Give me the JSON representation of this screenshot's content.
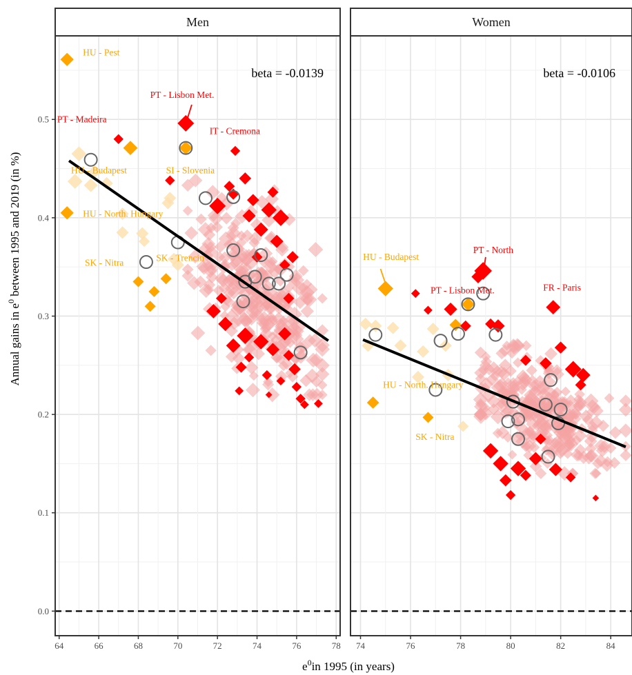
{
  "chart_data": {
    "type": "scatter",
    "ylabel_parts": [
      "Annual gains in e",
      "0",
      " between 1995 and 2019 (in %)"
    ],
    "xlabel_parts": [
      "e",
      "0",
      "in 1995 (in years)"
    ],
    "ylim": [
      -0.025,
      0.585
    ],
    "yticks": [
      0.0,
      0.1,
      0.2,
      0.3,
      0.4,
      0.5
    ],
    "colors": {
      "red": "#ff0000",
      "orange": "#ffa500",
      "light_orange": "#fde0b0",
      "pink": "#f4a3a3",
      "circle": "#666666",
      "fit": "#000000"
    },
    "reference_line": {
      "y": 0.0,
      "style": "dashed"
    },
    "panels": [
      {
        "key": "men",
        "title": "Men",
        "beta_label": "beta = -0.0139",
        "xlim": [
          63.8,
          78.2
        ],
        "xticks": [
          64,
          66,
          68,
          70,
          72,
          74,
          76,
          78
        ],
        "fit": {
          "x": [
            64.5,
            77.6
          ],
          "y": [
            0.458,
            0.275
          ]
        },
        "cloud": {
          "x_range": [
            70.5,
            77.3
          ],
          "y_range": [
            0.22,
            0.44
          ],
          "center": [
            74.2,
            0.33
          ],
          "n": 320
        },
        "red_points": [
          {
            "x": 70.4,
            "y": 0.496,
            "s": 1.5
          },
          {
            "x": 67.0,
            "y": 0.48,
            "s": 0.9
          },
          {
            "x": 72.9,
            "y": 0.468,
            "s": 0.9
          },
          {
            "x": 69.6,
            "y": 0.438,
            "s": 0.9
          },
          {
            "x": 73.4,
            "y": 0.44,
            "s": 1.1
          },
          {
            "x": 72.6,
            "y": 0.432,
            "s": 1.0
          },
          {
            "x": 72.0,
            "y": 0.412,
            "s": 1.5
          },
          {
            "x": 72.8,
            "y": 0.424,
            "s": 1.0
          },
          {
            "x": 73.8,
            "y": 0.418,
            "s": 1.1
          },
          {
            "x": 74.6,
            "y": 0.408,
            "s": 1.4
          },
          {
            "x": 75.2,
            "y": 0.4,
            "s": 1.5
          },
          {
            "x": 73.6,
            "y": 0.402,
            "s": 1.2
          },
          {
            "x": 74.2,
            "y": 0.388,
            "s": 1.3
          },
          {
            "x": 75.0,
            "y": 0.376,
            "s": 1.2
          },
          {
            "x": 75.8,
            "y": 0.36,
            "s": 1.1
          },
          {
            "x": 75.4,
            "y": 0.352,
            "s": 1.0
          },
          {
            "x": 74.0,
            "y": 0.36,
            "s": 1.0
          },
          {
            "x": 71.8,
            "y": 0.305,
            "s": 1.3
          },
          {
            "x": 72.4,
            "y": 0.292,
            "s": 1.3
          },
          {
            "x": 72.8,
            "y": 0.27,
            "s": 1.3
          },
          {
            "x": 73.4,
            "y": 0.28,
            "s": 1.5
          },
          {
            "x": 74.2,
            "y": 0.274,
            "s": 1.4
          },
          {
            "x": 74.8,
            "y": 0.266,
            "s": 1.2
          },
          {
            "x": 75.4,
            "y": 0.282,
            "s": 1.2
          },
          {
            "x": 75.9,
            "y": 0.246,
            "s": 1.1
          },
          {
            "x": 75.6,
            "y": 0.26,
            "s": 1.0
          },
          {
            "x": 73.2,
            "y": 0.248,
            "s": 1.0
          },
          {
            "x": 73.6,
            "y": 0.258,
            "s": 0.9
          },
          {
            "x": 74.5,
            "y": 0.24,
            "s": 0.9
          },
          {
            "x": 76.0,
            "y": 0.228,
            "s": 0.9
          },
          {
            "x": 76.2,
            "y": 0.216,
            "s": 0.9
          },
          {
            "x": 77.1,
            "y": 0.211,
            "s": 0.8
          },
          {
            "x": 73.1,
            "y": 0.224,
            "s": 0.8
          },
          {
            "x": 74.6,
            "y": 0.22,
            "s": 0.6
          },
          {
            "x": 75.2,
            "y": 0.234,
            "s": 0.8
          },
          {
            "x": 76.4,
            "y": 0.21,
            "s": 0.8
          },
          {
            "x": 72.2,
            "y": 0.318,
            "s": 1.0
          },
          {
            "x": 75.6,
            "y": 0.318,
            "s": 1.0
          },
          {
            "x": 74.8,
            "y": 0.426,
            "s": 1.0
          }
        ],
        "orange_points": [
          {
            "x": 64.4,
            "y": 0.561,
            "s": 1.2
          },
          {
            "x": 67.6,
            "y": 0.471,
            "s": 1.3
          },
          {
            "x": 64.4,
            "y": 0.405,
            "s": 1.2
          },
          {
            "x": 68.0,
            "y": 0.335,
            "s": 1.0
          },
          {
            "x": 69.4,
            "y": 0.338,
            "s": 1.0
          },
          {
            "x": 68.8,
            "y": 0.325,
            "s": 1.0
          },
          {
            "x": 68.6,
            "y": 0.31,
            "s": 1.0
          },
          {
            "x": 70.4,
            "y": 0.471,
            "s": 1.2
          }
        ],
        "light_orange_points": [
          {
            "x": 65.0,
            "y": 0.465,
            "s": 1.2
          },
          {
            "x": 64.8,
            "y": 0.437,
            "s": 1.2
          },
          {
            "x": 65.6,
            "y": 0.433,
            "s": 1.1
          },
          {
            "x": 66.4,
            "y": 0.435,
            "s": 1.0
          },
          {
            "x": 65.8,
            "y": 0.447,
            "s": 1.0
          },
          {
            "x": 67.2,
            "y": 0.404,
            "s": 1.0
          },
          {
            "x": 67.2,
            "y": 0.385,
            "s": 1.0
          },
          {
            "x": 68.2,
            "y": 0.384,
            "s": 1.0
          },
          {
            "x": 68.3,
            "y": 0.376,
            "s": 0.9
          },
          {
            "x": 69.5,
            "y": 0.415,
            "s": 1.0
          },
          {
            "x": 69.8,
            "y": 0.358,
            "s": 1.0
          },
          {
            "x": 70.0,
            "y": 0.352,
            "s": 1.0
          },
          {
            "x": 69.6,
            "y": 0.42,
            "s": 1.0
          }
        ],
        "circle_points": [
          {
            "x": 65.6,
            "y": 0.459
          },
          {
            "x": 68.4,
            "y": 0.355
          },
          {
            "x": 70.0,
            "y": 0.375
          },
          {
            "x": 70.4,
            "y": 0.471
          },
          {
            "x": 71.4,
            "y": 0.42
          },
          {
            "x": 72.8,
            "y": 0.421
          },
          {
            "x": 72.8,
            "y": 0.367
          },
          {
            "x": 73.4,
            "y": 0.335
          },
          {
            "x": 73.3,
            "y": 0.315
          },
          {
            "x": 73.9,
            "y": 0.34
          },
          {
            "x": 74.2,
            "y": 0.362
          },
          {
            "x": 74.6,
            "y": 0.333
          },
          {
            "x": 75.1,
            "y": 0.333
          },
          {
            "x": 75.5,
            "y": 0.342
          },
          {
            "x": 76.2,
            "y": 0.263
          }
        ],
        "labels": [
          {
            "text": "HU - Pest",
            "x": 65.2,
            "y": 0.565,
            "color": "orange"
          },
          {
            "text": "PT - Lisbon Met.",
            "x": 68.6,
            "y": 0.522,
            "color": "red"
          },
          {
            "text": "PT - Madeira",
            "x": 63.9,
            "y": 0.497,
            "color": "red"
          },
          {
            "text": "IT - Cremona",
            "x": 71.6,
            "y": 0.485,
            "color": "red"
          },
          {
            "text": "HU - Budapest",
            "x": 64.6,
            "y": 0.445,
            "color": "orange"
          },
          {
            "text": "SI - Slovenia",
            "x": 69.4,
            "y": 0.445,
            "color": "orange"
          },
          {
            "text": "HU - North. Hungary",
            "x": 65.2,
            "y": 0.401,
            "color": "orange"
          },
          {
            "text": "SK - Nitra",
            "x": 65.3,
            "y": 0.351,
            "color": "orange"
          },
          {
            "text": "SK - Trencin",
            "x": 68.9,
            "y": 0.356,
            "color": "orange"
          }
        ],
        "label_lines": [
          {
            "x1": 70.7,
            "y1": 0.515,
            "x2": 70.5,
            "y2": 0.502,
            "color": "red"
          }
        ]
      },
      {
        "key": "women",
        "title": "Women",
        "beta_label": "beta = -0.0106",
        "xlim": [
          73.6,
          84.85
        ],
        "xticks": [
          74,
          76,
          78,
          80,
          82,
          84
        ],
        "fit": {
          "x": [
            74.1,
            84.6
          ],
          "y": [
            0.276,
            0.167
          ]
        },
        "cloud": {
          "x_range": [
            78.8,
            84.6
          ],
          "y_range": [
            0.14,
            0.27
          ],
          "center": [
            81.2,
            0.205
          ],
          "n": 300
        },
        "red_points": [
          {
            "x": 78.9,
            "y": 0.346,
            "s": 1.6
          },
          {
            "x": 78.7,
            "y": 0.34,
            "s": 1.2
          },
          {
            "x": 81.7,
            "y": 0.309,
            "s": 1.3
          },
          {
            "x": 77.6,
            "y": 0.307,
            "s": 1.2
          },
          {
            "x": 76.2,
            "y": 0.323,
            "s": 0.8
          },
          {
            "x": 76.7,
            "y": 0.306,
            "s": 0.8
          },
          {
            "x": 79.5,
            "y": 0.29,
            "s": 1.2
          },
          {
            "x": 79.2,
            "y": 0.292,
            "s": 1.0
          },
          {
            "x": 78.2,
            "y": 0.29,
            "s": 1.0
          },
          {
            "x": 82.5,
            "y": 0.246,
            "s": 1.5
          },
          {
            "x": 82.9,
            "y": 0.24,
            "s": 1.3
          },
          {
            "x": 82.0,
            "y": 0.268,
            "s": 1.1
          },
          {
            "x": 81.4,
            "y": 0.252,
            "s": 1.1
          },
          {
            "x": 80.6,
            "y": 0.255,
            "s": 1.0
          },
          {
            "x": 79.2,
            "y": 0.163,
            "s": 1.4
          },
          {
            "x": 79.6,
            "y": 0.15,
            "s": 1.4
          },
          {
            "x": 80.3,
            "y": 0.145,
            "s": 1.4
          },
          {
            "x": 79.8,
            "y": 0.133,
            "s": 1.1
          },
          {
            "x": 81.0,
            "y": 0.155,
            "s": 1.2
          },
          {
            "x": 80.6,
            "y": 0.138,
            "s": 1.0
          },
          {
            "x": 81.8,
            "y": 0.144,
            "s": 1.2
          },
          {
            "x": 82.4,
            "y": 0.136,
            "s": 0.9
          },
          {
            "x": 80.0,
            "y": 0.118,
            "s": 0.9
          },
          {
            "x": 83.4,
            "y": 0.115,
            "s": 0.6
          },
          {
            "x": 82.8,
            "y": 0.23,
            "s": 1.0
          },
          {
            "x": 81.2,
            "y": 0.175,
            "s": 1.0
          }
        ],
        "orange_points": [
          {
            "x": 75.0,
            "y": 0.328,
            "s": 1.4
          },
          {
            "x": 78.3,
            "y": 0.312,
            "s": 1.2
          },
          {
            "x": 77.8,
            "y": 0.291,
            "s": 1.1
          },
          {
            "x": 74.5,
            "y": 0.212,
            "s": 1.1
          },
          {
            "x": 76.7,
            "y": 0.197,
            "s": 1.0
          }
        ],
        "light_orange_points": [
          {
            "x": 74.2,
            "y": 0.292,
            "s": 1.0
          },
          {
            "x": 74.6,
            "y": 0.29,
            "s": 1.0
          },
          {
            "x": 75.3,
            "y": 0.288,
            "s": 1.0
          },
          {
            "x": 74.3,
            "y": 0.27,
            "s": 1.0
          },
          {
            "x": 75.6,
            "y": 0.27,
            "s": 1.0
          },
          {
            "x": 76.5,
            "y": 0.264,
            "s": 1.0
          },
          {
            "x": 76.9,
            "y": 0.287,
            "s": 1.0
          },
          {
            "x": 77.4,
            "y": 0.27,
            "s": 1.0
          },
          {
            "x": 76.3,
            "y": 0.238,
            "s": 1.0
          },
          {
            "x": 77.5,
            "y": 0.24,
            "s": 1.0
          },
          {
            "x": 78.1,
            "y": 0.188,
            "s": 0.9
          }
        ],
        "circle_points": [
          {
            "x": 74.6,
            "y": 0.281
          },
          {
            "x": 77.0,
            "y": 0.225
          },
          {
            "x": 77.2,
            "y": 0.275
          },
          {
            "x": 77.9,
            "y": 0.282
          },
          {
            "x": 78.3,
            "y": 0.312
          },
          {
            "x": 78.9,
            "y": 0.323
          },
          {
            "x": 79.4,
            "y": 0.281
          },
          {
            "x": 79.9,
            "y": 0.193
          },
          {
            "x": 80.1,
            "y": 0.213
          },
          {
            "x": 80.3,
            "y": 0.195
          },
          {
            "x": 80.3,
            "y": 0.175
          },
          {
            "x": 81.4,
            "y": 0.21
          },
          {
            "x": 81.6,
            "y": 0.235
          },
          {
            "x": 82.0,
            "y": 0.205
          },
          {
            "x": 81.9,
            "y": 0.191
          },
          {
            "x": 81.5,
            "y": 0.157
          }
        ],
        "labels": [
          {
            "text": "HU - Budapest",
            "x": 74.1,
            "y": 0.357,
            "color": "orange"
          },
          {
            "text": "PT - North",
            "x": 78.5,
            "y": 0.364,
            "color": "red"
          },
          {
            "text": "PT - Lisbon Met.",
            "x": 76.8,
            "y": 0.323,
            "color": "red"
          },
          {
            "text": "FR - Paris",
            "x": 81.3,
            "y": 0.326,
            "color": "red"
          },
          {
            "text": "HU - North. Hungary",
            "x": 74.9,
            "y": 0.227,
            "color": "orange"
          },
          {
            "text": "SK - Nitra",
            "x": 76.2,
            "y": 0.174,
            "color": "orange"
          }
        ],
        "label_lines": [
          {
            "x1": 74.8,
            "y1": 0.348,
            "x2": 75.0,
            "y2": 0.333,
            "color": "orange"
          },
          {
            "x1": 79.0,
            "y1": 0.36,
            "x2": 78.95,
            "y2": 0.351,
            "color": "red"
          }
        ]
      }
    ]
  }
}
